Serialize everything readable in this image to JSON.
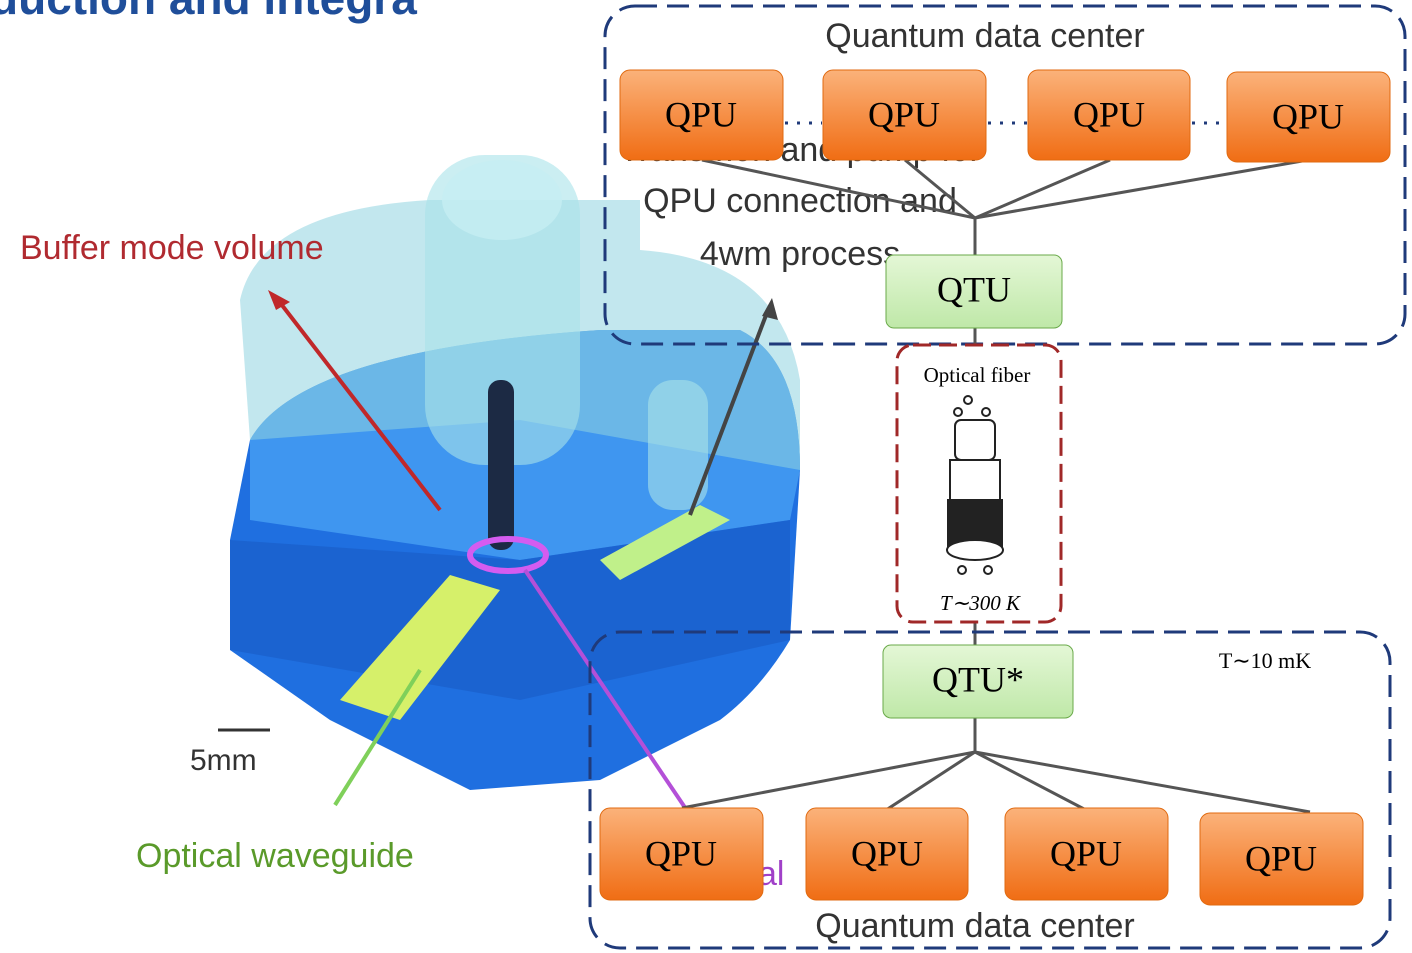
{
  "title": "duction and integra",
  "left": {
    "buffer": "Buffer mode volume",
    "transmon": [
      "Transmon and pump for",
      "QPU connection and",
      "4wm process"
    ],
    "scale": "5mm",
    "waveguide": "Optical waveguide",
    "crystal": "al"
  },
  "top_center": {
    "label": "Quantum data center",
    "qpus": [
      "QPU",
      "QPU",
      "QPU",
      "QPU"
    ],
    "qtu": "QTU"
  },
  "link": {
    "label": "Optical fiber",
    "temperature": "T∼300 K"
  },
  "bottom_center": {
    "label": "Quantum data center",
    "qpus": [
      "QPU",
      "QPU",
      "QPU",
      "QPU"
    ],
    "qtu": "QTU*",
    "temperature": "T∼10 mK"
  }
}
